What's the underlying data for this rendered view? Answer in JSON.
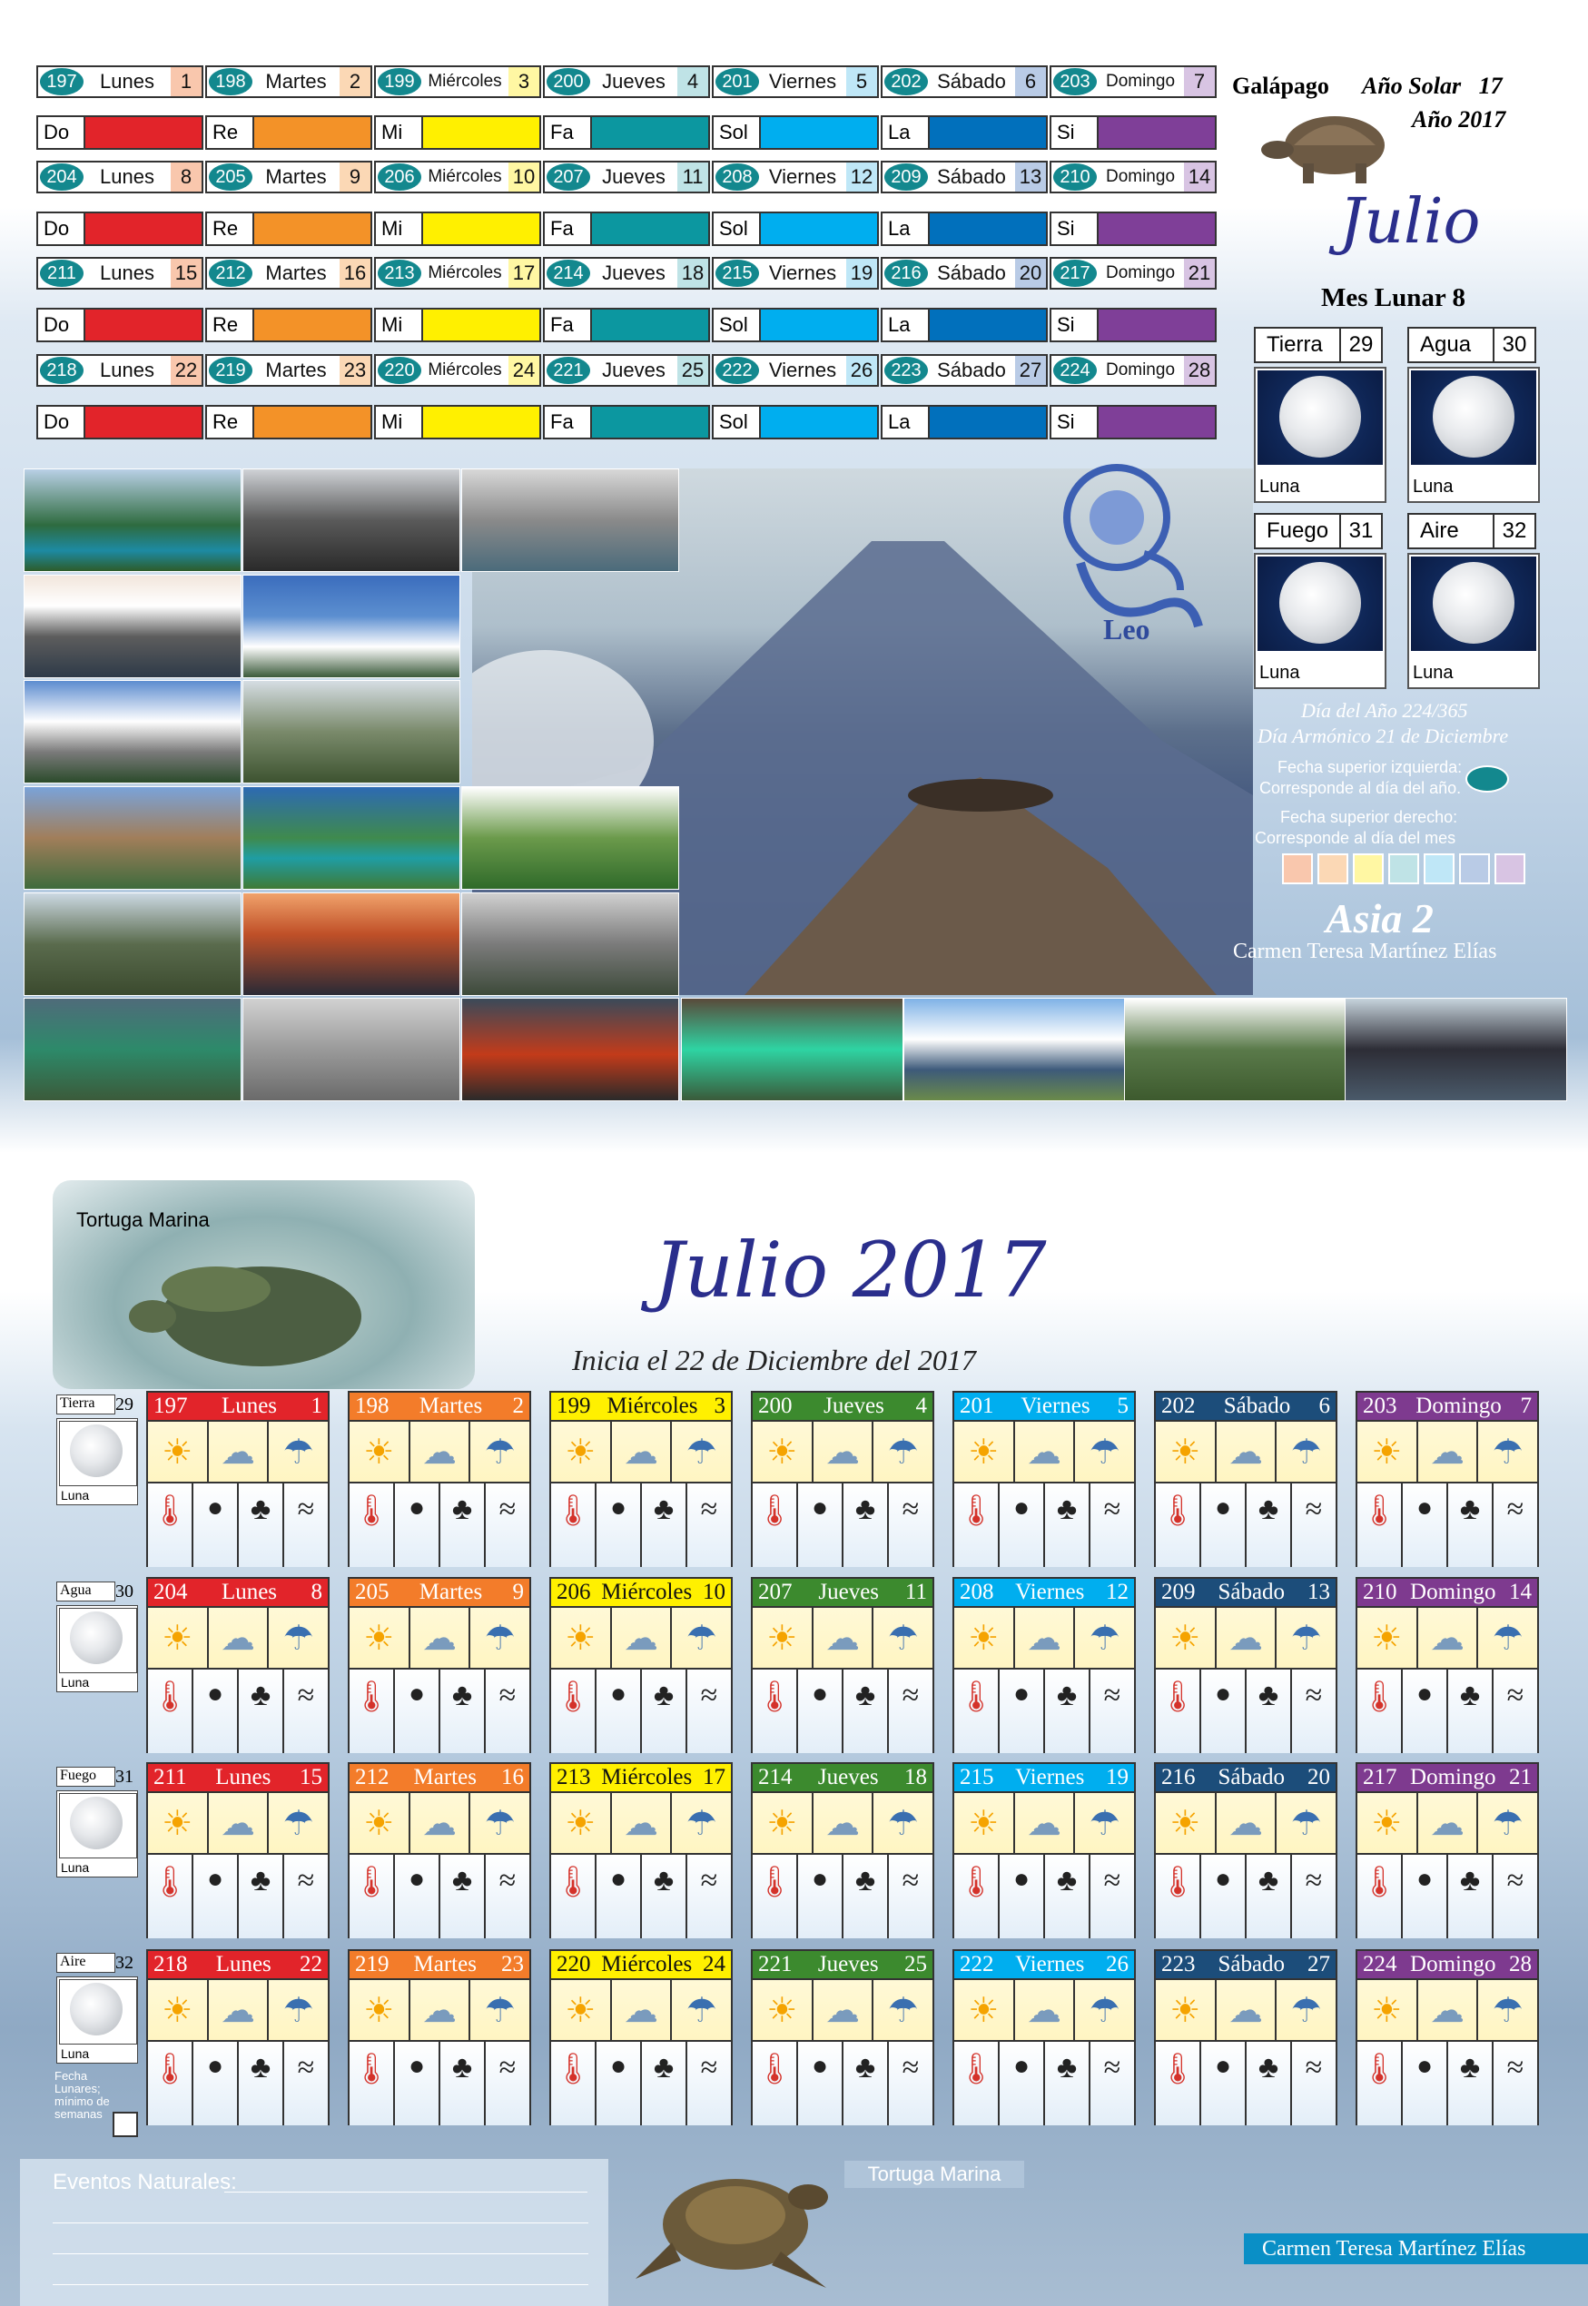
{
  "colors": {
    "teal_badge": "#13888e",
    "do": "#e2242a",
    "re": "#f39228",
    "mi": "#fff000",
    "fa": "#0c97a0",
    "sol": "#00aeef",
    "la": "#0170bc",
    "si": "#7f3f98",
    "lunes_head": "#e2242a",
    "martes_head": "#f37c2a",
    "miercoles_head": "#fff000",
    "jueves_head": "#3c8a2e",
    "viernes_head": "#00aeef",
    "sabado_head": "#1c4d7a",
    "domingo_head": "#7e3a8f",
    "lunes_pastel": "#f9c7ad",
    "martes_pastel": "#fbd8b5",
    "miercoles_pastel": "#fff7a3",
    "jueves_pastel": "#bfe3e6",
    "viernes_pastel": "#bfe7f7",
    "sabado_pastel": "#b9cbe6",
    "domingo_pastel": "#d8c4e3",
    "title_blue": "#2a2e8c"
  },
  "header": {
    "galapago": "Galápago",
    "ano_solar_label": "Año Solar",
    "ano_solar_value": "17",
    "ano": "Año 2017",
    "mes": "Julio",
    "mes_lunar": "Mes Lunar 8"
  },
  "top_weeks": [
    {
      "days": [
        [
          "197",
          "Lunes",
          "1"
        ],
        [
          "198",
          "Martes",
          "2"
        ],
        [
          "199",
          "Miércoles",
          "3"
        ],
        [
          "200",
          "Jueves",
          "4"
        ],
        [
          "201",
          "Viernes",
          "5"
        ],
        [
          "202",
          "Sábado",
          "6"
        ],
        [
          "203",
          "Domingo",
          "7"
        ]
      ]
    },
    {
      "days": [
        [
          "204",
          "Lunes",
          "8"
        ],
        [
          "205",
          "Martes",
          "9"
        ],
        [
          "206",
          "Miércoles",
          "10"
        ],
        [
          "207",
          "Jueves",
          "11"
        ],
        [
          "208",
          "Viernes",
          "12"
        ],
        [
          "209",
          "Sábado",
          "13"
        ],
        [
          "210",
          "Domingo",
          "14"
        ]
      ]
    },
    {
      "days": [
        [
          "211",
          "Lunes",
          "15"
        ],
        [
          "212",
          "Martes",
          "16"
        ],
        [
          "213",
          "Miércoles",
          "17"
        ],
        [
          "214",
          "Jueves",
          "18"
        ],
        [
          "215",
          "Viernes",
          "19"
        ],
        [
          "216",
          "Sábado",
          "20"
        ],
        [
          "217",
          "Domingo",
          "21"
        ]
      ]
    },
    {
      "days": [
        [
          "218",
          "Lunes",
          "22"
        ],
        [
          "219",
          "Martes",
          "23"
        ],
        [
          "220",
          "Miércoles",
          "24"
        ],
        [
          "221",
          "Jueves",
          "25"
        ],
        [
          "222",
          "Viernes",
          "26"
        ],
        [
          "223",
          "Sábado",
          "27"
        ],
        [
          "224",
          "Domingo",
          "28"
        ]
      ]
    }
  ],
  "notes": [
    "Do",
    "Re",
    "Mi",
    "Fa",
    "Sol",
    "La",
    "Si"
  ],
  "elements": [
    {
      "name": "Tierra",
      "num": "29",
      "luna": "Luna"
    },
    {
      "name": "Agua",
      "num": "30",
      "luna": "Luna"
    },
    {
      "name": "Fuego",
      "num": "31",
      "luna": "Luna"
    },
    {
      "name": "Aire",
      "num": "32",
      "luna": "Luna"
    }
  ],
  "zodiac": "Leo",
  "info": {
    "dia_ano": "Día del Año 224/365",
    "dia_armonico": "Día Armónico 21 de Diciembre",
    "fecha_izq_1": "Fecha superior izquierda:",
    "fecha_izq_2": "Corresponde al día del año.",
    "fecha_der_1": "Fecha superior derecho:",
    "fecha_der_2": "Corresponde al día del mes"
  },
  "region": "Asia 2",
  "author": "Carmen Teresa Martínez Elías",
  "bottom": {
    "tortuga_top": "Tortuga Marina",
    "title": "Julio 2017",
    "subtitle": "Inicia el 22 de Diciembre del 2017",
    "side_elements": [
      {
        "name": "Tierra",
        "num": "29",
        "luna": "Luna"
      },
      {
        "name": "Agua",
        "num": "30",
        "luna": "Luna"
      },
      {
        "name": "Fuego",
        "num": "31",
        "luna": "Luna"
      },
      {
        "name": "Aire",
        "num": "32",
        "luna": "Luna"
      }
    ],
    "fecha_lunares_1": "Fecha",
    "fecha_lunares_2": "Lunares;",
    "fecha_lunares_3": "mínimo de",
    "fecha_lunares_4": "semanas",
    "eventos": "Eventos Naturales:",
    "tortuga_bottom": "Tortuga Marina",
    "author": "Carmen Teresa Martínez Elías"
  },
  "weather_icons": [
    "sun-icon",
    "cloud-icon",
    "rain-icon"
  ],
  "status_icons": [
    "thermometer-icon",
    "moon-phase-icon",
    "palm-tree-icon",
    "wind-icon"
  ]
}
